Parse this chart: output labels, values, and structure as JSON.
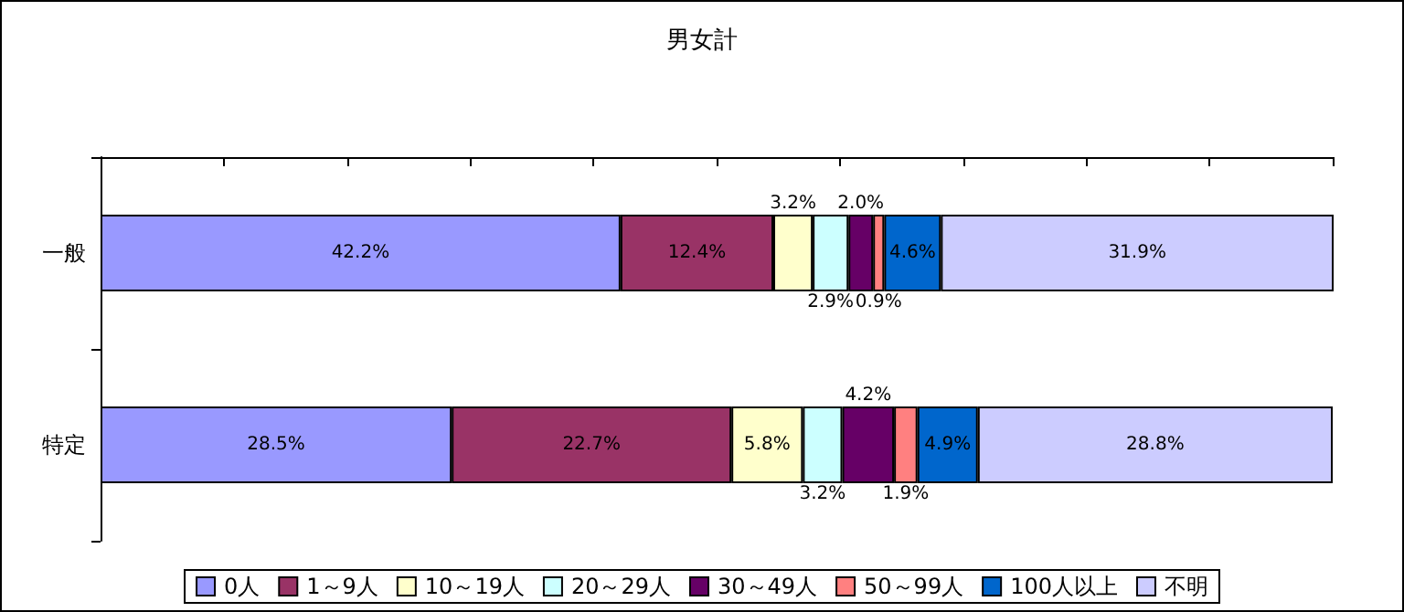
{
  "chart_data": {
    "type": "bar",
    "title": "男女計",
    "orientation": "horizontal",
    "stacked": true,
    "categories": [
      "一般",
      "特定"
    ],
    "xlim": [
      0,
      100
    ],
    "xticks": [
      0,
      10,
      20,
      30,
      40,
      50,
      60,
      70,
      80,
      90,
      100
    ],
    "tick_labels": "y",
    "grid": false,
    "legend": "bottom",
    "series": [
      {
        "name": "0人",
        "color": "#9999ff",
        "values": [
          42.2,
          28.5
        ],
        "value_labels": [
          "42.2%",
          "28.5%"
        ]
      },
      {
        "name": "1～9人",
        "color": "#993366",
        "values": [
          12.4,
          22.7
        ],
        "value_labels": [
          "12.4%",
          "22.7%"
        ]
      },
      {
        "name": "10～19人",
        "color": "#ffffcc",
        "values": [
          3.2,
          5.8
        ],
        "value_labels": [
          "3.2%",
          "5.8%"
        ]
      },
      {
        "name": "20～29人",
        "color": "#ccffff",
        "values": [
          2.9,
          3.2
        ],
        "value_labels": [
          "2.9%",
          "3.2%"
        ]
      },
      {
        "name": "30～49人",
        "color": "#660066",
        "values": [
          2.0,
          4.2
        ],
        "value_labels": [
          "2.0%",
          "4.2%"
        ]
      },
      {
        "name": "50～99人",
        "color": "#ff8080",
        "values": [
          0.9,
          1.9
        ],
        "value_labels": [
          "0.9%",
          "1.9%"
        ]
      },
      {
        "name": "100人以上",
        "color": "#0066cc",
        "values": [
          4.6,
          4.9
        ],
        "value_labels": [
          "4.6%",
          "4.9%"
        ]
      },
      {
        "name": "不明",
        "color": "#ccccff",
        "values": [
          31.9,
          28.8
        ],
        "value_labels": [
          "31.9%",
          "28.8%"
        ]
      }
    ]
  }
}
